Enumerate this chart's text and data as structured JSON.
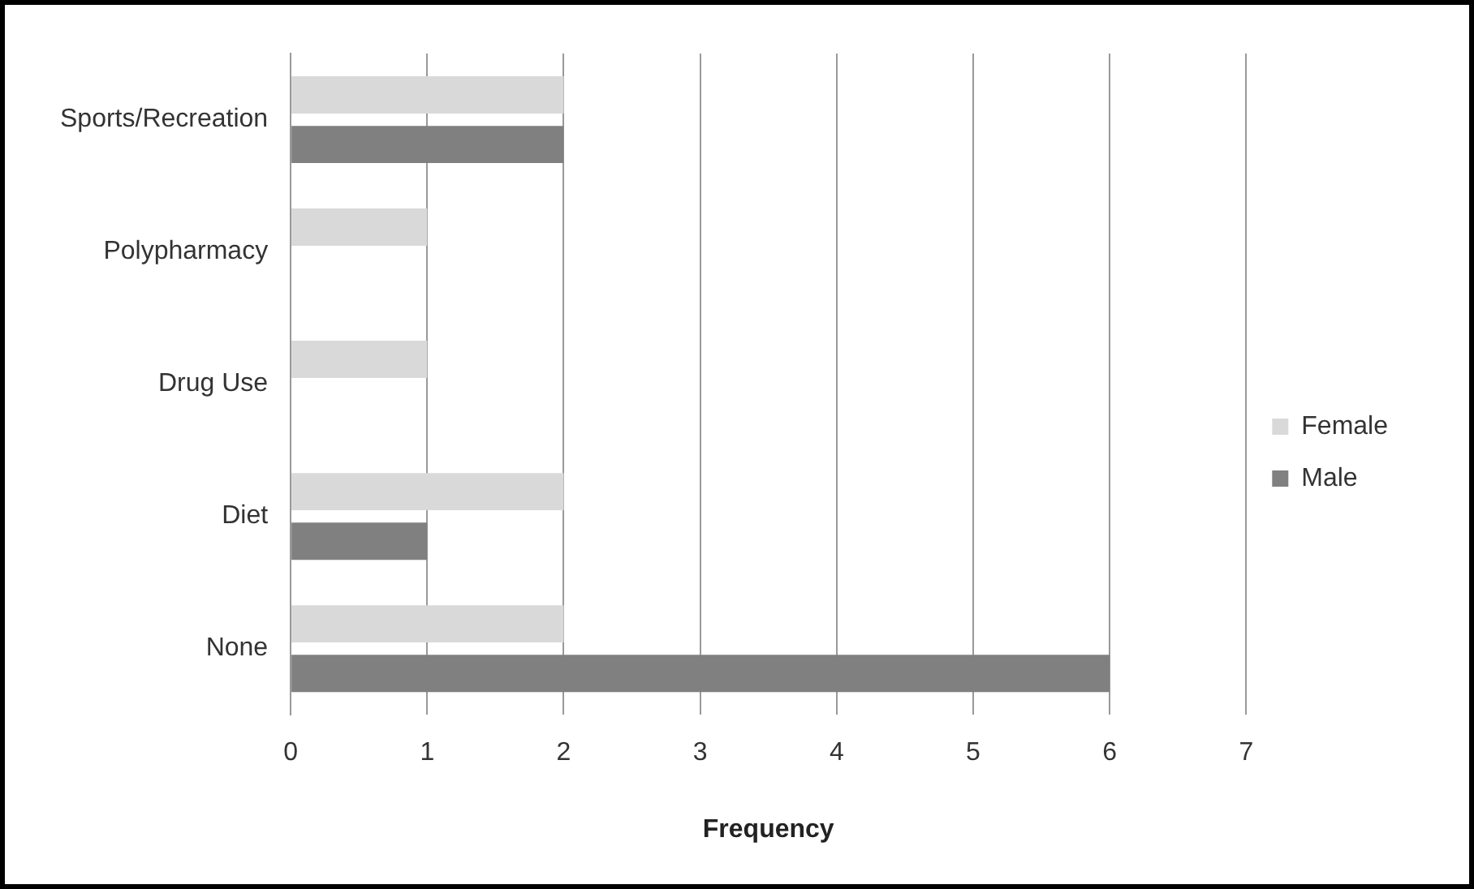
{
  "chart_data": {
    "type": "bar",
    "orientation": "horizontal",
    "xlabel": "Frequency",
    "categories": [
      "Sports/Recreation",
      "Polypharmacy",
      "Drug Use",
      "Diet",
      "None"
    ],
    "series": [
      {
        "name": "Female",
        "color": "#d9d9d9",
        "values": [
          2,
          1,
          1,
          2,
          2
        ]
      },
      {
        "name": "Male",
        "color": "#808080",
        "values": [
          2,
          0,
          0,
          1,
          6
        ]
      }
    ],
    "xlim": [
      0,
      7
    ],
    "xticks": [
      0,
      1,
      2,
      3,
      4,
      5,
      6,
      7
    ],
    "grid": "x",
    "legend": "right"
  }
}
